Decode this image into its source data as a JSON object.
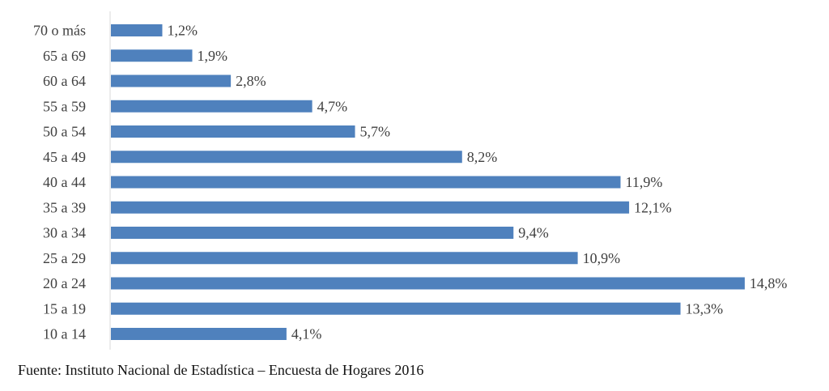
{
  "chart_data": {
    "type": "bar",
    "orientation": "horizontal",
    "categories": [
      "70 o más",
      "65 a 69",
      "60 a 64",
      "55 a 59",
      "50 a 54",
      "45 a 49",
      "40 a 44",
      "35 a 39",
      "30 a 34",
      "25 a 29",
      "20 a 24",
      "15 a 19",
      "10 a 14"
    ],
    "values": [
      1.2,
      1.9,
      2.8,
      4.7,
      5.7,
      8.2,
      11.9,
      12.1,
      9.4,
      10.9,
      14.8,
      13.3,
      4.1
    ],
    "value_labels": [
      "1,2%",
      "1,9%",
      "2,8%",
      "4,7%",
      "5,7%",
      "8,2%",
      "11,9%",
      "12,1%",
      "9,4%",
      "10,9%",
      "14,8%",
      "13,3%",
      "4,1%"
    ],
    "xlim": [
      0,
      15
    ],
    "bar_color": "#4f81bd",
    "grid": false,
    "legend": "none"
  },
  "source_note": "Fuente: Instituto Nacional de Estadística – Encuesta de Hogares 2016"
}
